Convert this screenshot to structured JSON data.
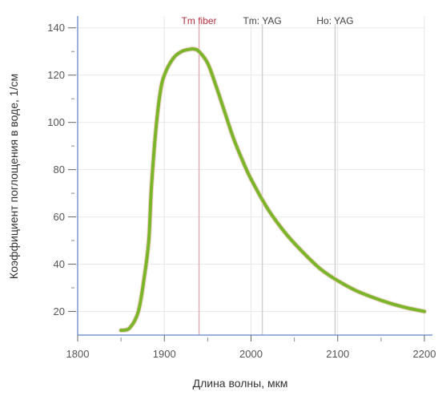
{
  "chart_data": {
    "type": "line",
    "title": "",
    "xlabel": "Длина волны, мкм",
    "ylabel": "Коэффициент поглощения в воде, 1/см",
    "xlim": [
      1800,
      2200
    ],
    "ylim": [
      10,
      145
    ],
    "x_ticks": [
      1800,
      1900,
      2000,
      2100,
      2200
    ],
    "x_minor_ticks": [
      1850,
      1950,
      2050,
      2150
    ],
    "y_ticks": [
      20,
      40,
      60,
      80,
      100,
      120,
      140
    ],
    "y_minor_ticks": [
      30,
      50,
      70,
      90,
      110,
      130
    ],
    "grid": true,
    "colors": {
      "curve": "#7ab52a",
      "grid": "#e8e8e8",
      "axis": "#7a9ad0",
      "marker_tm_fiber": "#e0b0b8",
      "marker_other": "#d0d0d0",
      "label_tm_fiber": "#b03040",
      "label_other": "#444444"
    },
    "markers": [
      {
        "label": "Tm fiber",
        "x": 1940
      },
      {
        "label": "Tm: YAG",
        "x": 2013
      },
      {
        "label": "Ho: YAG",
        "x": 2097
      }
    ],
    "series": [
      {
        "x": [
          1850,
          1860,
          1870,
          1877,
          1882,
          1885,
          1890,
          1895,
          1900,
          1910,
          1920,
          1930,
          1935,
          1940,
          1950,
          1960,
          1970,
          1980,
          1990,
          2000,
          2020,
          2040,
          2060,
          2080,
          2100,
          2120,
          2140,
          2160,
          2180,
          2200
        ],
        "y": [
          12,
          13,
          20,
          35,
          50,
          72,
          96,
          112,
          120,
          127,
          130,
          131,
          131,
          130,
          125,
          115,
          104,
          93,
          84,
          76,
          63,
          53,
          45,
          38,
          33,
          29,
          26,
          23.5,
          21.5,
          20
        ]
      }
    ]
  }
}
